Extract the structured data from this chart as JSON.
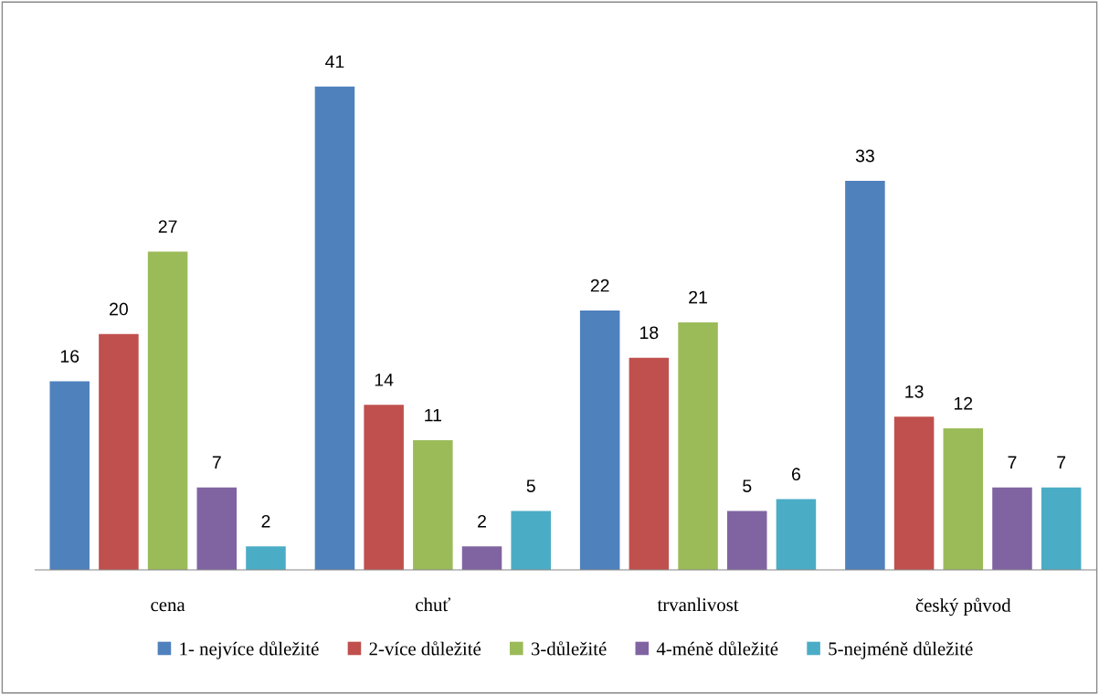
{
  "chart_data": {
    "type": "bar",
    "categories": [
      "cena",
      "chuť",
      "trvanlivost",
      "český původ"
    ],
    "series": [
      {
        "name": "1- nejvíce důležité",
        "color": "#4f81bd",
        "values": [
          16,
          41,
          22,
          33
        ]
      },
      {
        "name": "2-více důležité",
        "color": "#c0504d",
        "values": [
          20,
          14,
          18,
          13
        ]
      },
      {
        "name": "3-důležité",
        "color": "#9bbb59",
        "values": [
          27,
          11,
          21,
          12
        ]
      },
      {
        "name": "4-méně důležité",
        "color": "#8064a2",
        "values": [
          7,
          2,
          5,
          7
        ]
      },
      {
        "name": "5-nejméně důležité",
        "color": "#4bacc6",
        "values": [
          2,
          5,
          6,
          7
        ]
      }
    ],
    "data_labels": true,
    "legend": "bottom",
    "tick_labels": "x"
  }
}
